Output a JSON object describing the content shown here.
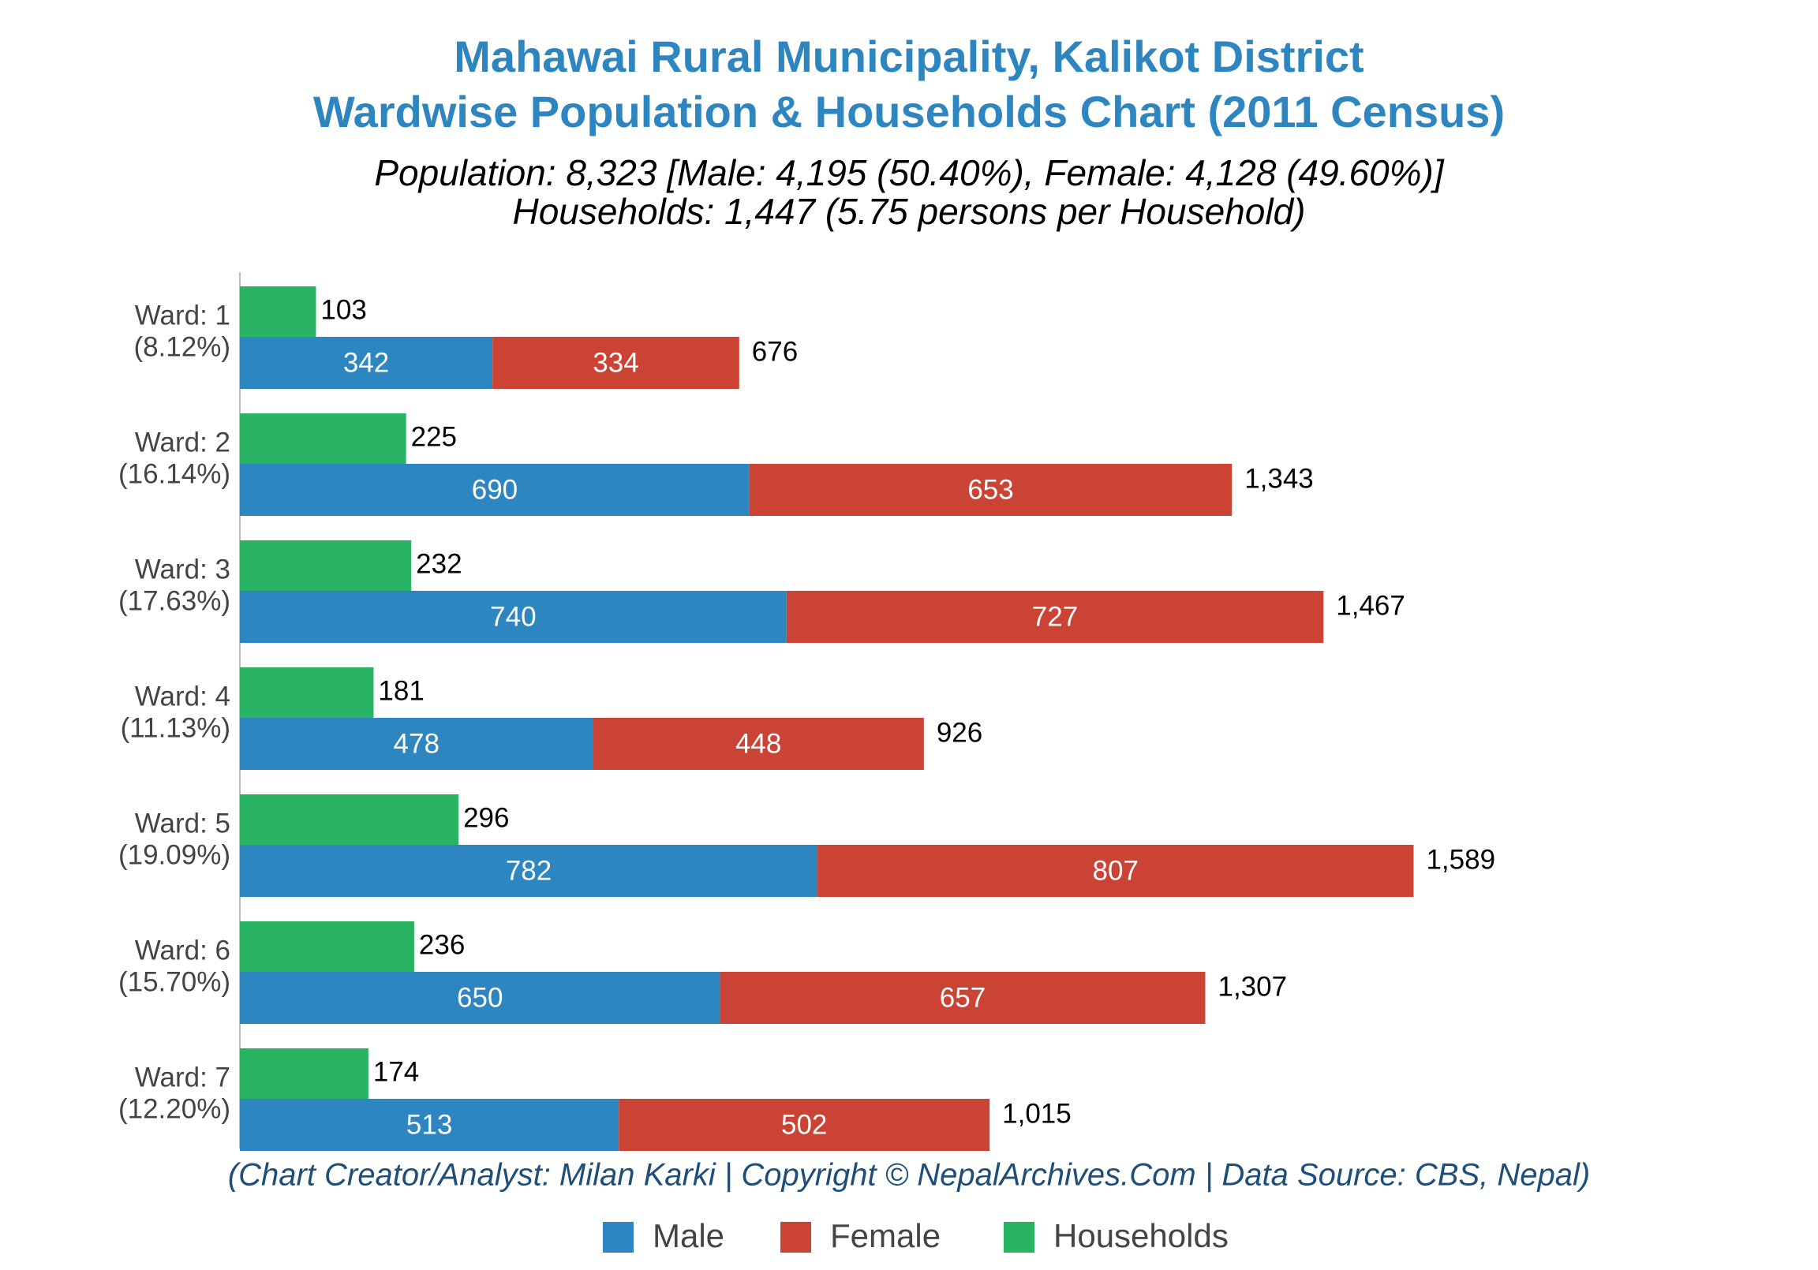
{
  "chart_data": {
    "type": "bar",
    "orientation": "horizontal",
    "title": [
      "Mahawai Rural Municipality, Kalikot District",
      "Wardwise Population & Households Chart (2011 Census)"
    ],
    "subtitle": [
      "Population: 8,323 [Male: 4,195 (50.40%), Female: 4,128 (49.60%)]",
      "Households: 1,447 (5.75 persons per Household)"
    ],
    "footer": "(Chart Creator/Analyst: Milan Karki | Copyright © NepalArchives.Com | Data Source: CBS, Nepal)",
    "categories": [
      "Ward: 1",
      "Ward: 2",
      "Ward: 3",
      "Ward: 4",
      "Ward: 5",
      "Ward: 6",
      "Ward: 7"
    ],
    "category_shares": [
      "(8.12%)",
      "(16.14%)",
      "(17.63%)",
      "(11.13%)",
      "(19.09%)",
      "(15.70%)",
      "(12.20%)"
    ],
    "series": [
      {
        "name": "Male",
        "color": "#2e86c1",
        "stacked": true,
        "values": [
          342,
          690,
          740,
          478,
          782,
          650,
          513
        ]
      },
      {
        "name": "Female",
        "color": "#cb4335",
        "stacked": true,
        "values": [
          334,
          653,
          727,
          448,
          807,
          657,
          502
        ]
      },
      {
        "name": "Households",
        "color": "#28b463",
        "stacked": false,
        "values": [
          103,
          225,
          232,
          181,
          296,
          236,
          174
        ]
      }
    ],
    "total_labels": [
      "676",
      "1,343",
      "1,467",
      "926",
      "1,589",
      "1,307",
      "1,015"
    ],
    "xlim": [
      0,
      1800
    ],
    "legend": "bottom"
  }
}
